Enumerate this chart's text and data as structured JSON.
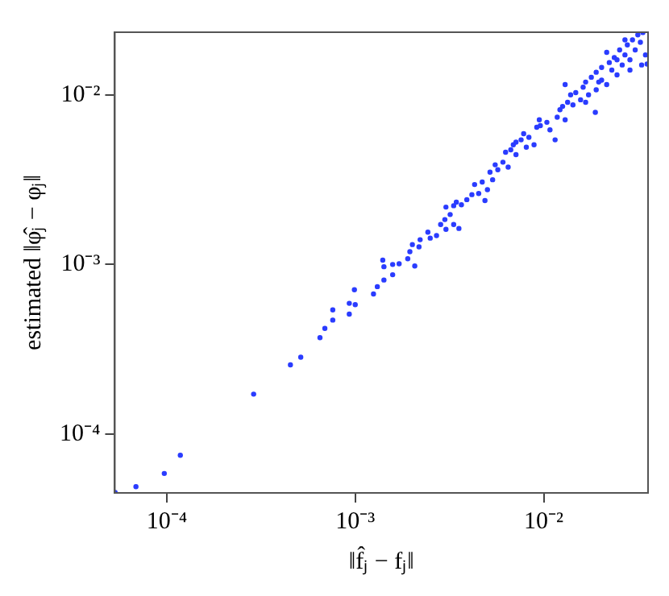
{
  "chart_data": {
    "type": "scatter",
    "xlabel": "‖f̂ⱼ − fⱼ‖",
    "ylabel": "estimated ‖φ̂ⱼ − φⱼ‖",
    "log": "xy",
    "grid": false,
    "marker": "circle",
    "xlim": [
      5.3e-05,
      0.0358
    ],
    "ylim": [
      4.5e-05,
      0.0234
    ],
    "xticks": [
      {
        "value": 0.0001,
        "label": "10⁻⁴"
      },
      {
        "value": 0.001,
        "label": "10⁻³"
      },
      {
        "value": 0.01,
        "label": "10⁻²"
      }
    ],
    "yticks": [
      {
        "value": 0.0001,
        "label": "10⁻⁴"
      },
      {
        "value": 0.001,
        "label": "10⁻³"
      },
      {
        "value": 0.01,
        "label": "10⁻²"
      }
    ],
    "series": [
      {
        "color": "#2a3cff",
        "x": [
          5.32e-05,
          6.86e-05,
          9.7e-05,
          0.000118,
          0.000289,
          0.000453,
          0.000514,
          0.00065,
          0.00069,
          0.00076,
          0.00076,
          0.00093,
          0.00093,
          0.001,
          0.00099,
          0.00125,
          0.00131,
          0.00142,
          0.0014,
          0.00142,
          0.00158,
          0.00158,
          0.00171,
          0.0019,
          0.00195,
          0.00207,
          0.00201,
          0.00218,
          0.00221,
          0.00243,
          0.0025,
          0.0027,
          0.00284,
          0.00303,
          0.00333,
          0.00355,
          0.00299,
          0.00319,
          0.00303,
          0.00333,
          0.00366,
          0.00344,
          0.00391,
          0.00416,
          0.00452,
          0.0043,
          0.00472,
          0.00503,
          0.00488,
          0.00536,
          0.00519,
          0.00571,
          0.00608,
          0.00553,
          0.00648,
          0.00628,
          0.00669,
          0.00713,
          0.0069,
          0.00759,
          0.00809,
          0.00783,
          0.00835,
          0.00713,
          0.00919,
          0.00948,
          0.0096,
          0.0115,
          0.0104,
          0.0108,
          0.0118,
          0.0122,
          0.0126,
          0.013,
          0.0134,
          0.0143,
          0.0139,
          0.0148,
          0.0157,
          0.0162,
          0.0167,
          0.0173,
          0.0188,
          0.0179,
          0.019,
          0.0196,
          0.0203,
          0.0216,
          0.0223,
          0.023,
          0.0237,
          0.0245,
          0.0253,
          0.0261,
          0.027,
          0.0278,
          0.0287,
          0.0296,
          0.0306,
          0.0316,
          0.0326,
          0.0336,
          0.0347,
          0.0354,
          0.0331,
          0.0287,
          0.0245,
          0.0167,
          0.019,
          0.00889,
          0.013,
          0.0216,
          0.027,
          0.0203
        ],
        "values": [
          4.53e-05,
          4.9e-05,
          5.86e-05,
          7.5e-05,
          0.000172,
          0.000256,
          0.000284,
          0.00037,
          0.00042,
          0.00047,
          0.00054,
          0.00051,
          0.00059,
          0.00058,
          0.00071,
          0.00067,
          0.00074,
          0.00081,
          0.00106,
          0.00097,
          0.00087,
          0.001,
          0.00101,
          0.00108,
          0.00119,
          0.00098,
          0.00131,
          0.00127,
          0.0014,
          0.00155,
          0.00143,
          0.00148,
          0.00172,
          0.00161,
          0.00172,
          0.00163,
          0.00184,
          0.00197,
          0.00218,
          0.00222,
          0.00225,
          0.00233,
          0.00241,
          0.00258,
          0.00262,
          0.00296,
          0.00306,
          0.00276,
          0.00238,
          0.00316,
          0.0035,
          0.00362,
          0.00401,
          0.00387,
          0.00375,
          0.00459,
          0.00474,
          0.00444,
          0.00508,
          0.00543,
          0.00491,
          0.0059,
          0.00562,
          0.00526,
          0.00644,
          0.00713,
          0.00658,
          0.00543,
          0.00689,
          0.00622,
          0.00738,
          0.00817,
          0.00855,
          0.00713,
          0.00904,
          0.00873,
          0.01,
          0.0103,
          0.00935,
          0.0111,
          0.0119,
          0.01,
          0.00789,
          0.0127,
          0.0136,
          0.0119,
          0.0145,
          0.0115,
          0.0155,
          0.014,
          0.0166,
          0.0131,
          0.0184,
          0.015,
          0.0172,
          0.0197,
          0.0161,
          0.0211,
          0.0184,
          0.0226,
          0.0204,
          0.0233,
          0.0172,
          0.0152,
          0.015,
          0.014,
          0.0161,
          0.00904,
          0.0107,
          0.00508,
          0.0115,
          0.0178,
          0.0211,
          0.0122
        ]
      }
    ]
  }
}
